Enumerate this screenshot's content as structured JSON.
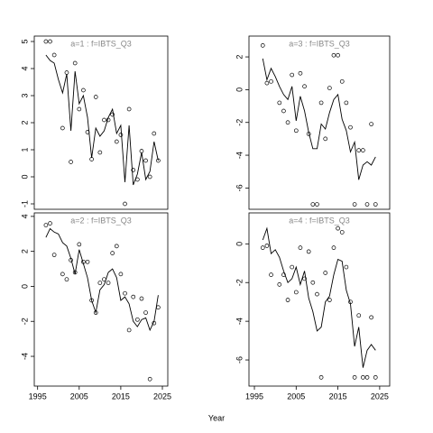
{
  "x_label": "Year",
  "chart_data": [
    {
      "type": "line",
      "title": "a=1 : f=IBTS_Q3",
      "x": [
        1997,
        1998,
        1999,
        2000,
        2001,
        2002,
        2003,
        2004,
        2005,
        2006,
        2007,
        2008,
        2009,
        2010,
        2011,
        2012,
        2013,
        2014,
        2015,
        2016,
        2017,
        2018,
        2019,
        2020,
        2021,
        2022,
        2023,
        2024
      ],
      "values": [
        4.5,
        4.3,
        4.2,
        3.6,
        3.1,
        3.8,
        1.7,
        3.9,
        2.7,
        3.0,
        2.2,
        0.7,
        1.8,
        1.5,
        1.7,
        2.2,
        2.5,
        1.6,
        1.9,
        -0.2,
        1.9,
        -0.3,
        0.1,
        0.9,
        -0.1,
        0.2,
        1.3,
        0.6
      ],
      "points_x": [
        1997,
        1998,
        1999,
        2001,
        2002,
        2003,
        2004,
        2005,
        2006,
        2007,
        2008,
        2009,
        2010,
        2011,
        2012,
        2013,
        2014,
        2015,
        2016,
        2017,
        2018,
        2019,
        2020,
        2021,
        2022,
        2023,
        2024
      ],
      "points_y": [
        5,
        5,
        4.5,
        1.8,
        3.85,
        0.55,
        4.2,
        2.5,
        3.2,
        1.65,
        0.65,
        2.95,
        0.9,
        2.1,
        2.1,
        2.3,
        1.3,
        1.55,
        -1,
        2.5,
        0.25,
        -0.1,
        0.95,
        0.6,
        0,
        1.6,
        0.6
      ],
      "xlim": [
        1994.2,
        2026.3
      ],
      "ylim": [
        -1.2,
        5.2
      ],
      "yticks": [
        -1,
        0,
        1,
        2,
        3,
        4,
        5
      ]
    },
    {
      "type": "line",
      "title": "a=3 : f=IBTS_Q3",
      "x": [
        1997,
        1998,
        1999,
        2000,
        2001,
        2002,
        2003,
        2004,
        2005,
        2006,
        2007,
        2008,
        2009,
        2010,
        2011,
        2012,
        2013,
        2014,
        2015,
        2016,
        2017,
        2018,
        2019,
        2020,
        2021,
        2022,
        2023,
        2024
      ],
      "values": [
        1.9,
        0.6,
        1.3,
        0.8,
        0.2,
        -0.3,
        -0.6,
        0.2,
        -1.9,
        -0.4,
        -1.3,
        -2.6,
        -3.6,
        -3.6,
        -2.1,
        -2.4,
        -1.4,
        -0.6,
        -0.3,
        -1.8,
        -2.5,
        -3.8,
        -3.2,
        -5.5,
        -4.6,
        -4.4,
        -4.6,
        -4.1
      ],
      "points_x": [
        1997,
        1998,
        1999,
        2001,
        2002,
        2003,
        2004,
        2005,
        2006,
        2007,
        2008,
        2009,
        2010,
        2011,
        2012,
        2013,
        2014,
        2015,
        2016,
        2017,
        2018,
        2019,
        2020,
        2021,
        2022,
        2023,
        2024
      ],
      "points_y": [
        2.7,
        0.4,
        0.5,
        -0.8,
        -1.3,
        -2,
        0.9,
        -2.5,
        1,
        0.2,
        -2.7,
        -7,
        -7,
        -0.8,
        -3,
        0.1,
        2.1,
        2.1,
        0.5,
        -0.8,
        -2.3,
        -7,
        -3.7,
        -3.7,
        -7,
        -2.1,
        -7
      ],
      "xlim": [
        1993.7,
        2027.4
      ],
      "ylim": [
        -7.3,
        3.27
      ],
      "yticks": [
        -6,
        -4,
        -2,
        0,
        2
      ]
    },
    {
      "type": "line",
      "title": "a=2 : f=IBTS_Q3",
      "x": [
        1997,
        1998,
        1999,
        2000,
        2001,
        2002,
        2003,
        2004,
        2005,
        2006,
        2007,
        2008,
        2009,
        2010,
        2011,
        2012,
        2013,
        2014,
        2015,
        2016,
        2017,
        2018,
        2019,
        2020,
        2021,
        2022,
        2023,
        2024
      ],
      "values": [
        2.8,
        3.3,
        3.1,
        3.0,
        2.5,
        2.3,
        1.6,
        0.7,
        2.1,
        1.3,
        0.5,
        -0.8,
        -1.5,
        -0.2,
        0.1,
        0.8,
        1.0,
        0.5,
        -0.8,
        -0.6,
        -1.0,
        -2.0,
        -2.3,
        -1.9,
        -1.8,
        -2.5,
        -2.0,
        -0.5
      ],
      "points_x": [
        1997,
        1998,
        1999,
        2001,
        2002,
        2003,
        2004,
        2005,
        2006,
        2007,
        2008,
        2009,
        2010,
        2011,
        2012,
        2013,
        2014,
        2015,
        2016,
        2017,
        2018,
        2019,
        2020,
        2021,
        2022,
        2023,
        2024
      ],
      "points_y": [
        3.5,
        3.6,
        1.8,
        0.7,
        0.4,
        1.5,
        0.8,
        2.4,
        1.4,
        1.4,
        -0.8,
        -1.5,
        0.2,
        0.4,
        0.2,
        1.9,
        2.3,
        0.7,
        -0.4,
        -2.5,
        -0.6,
        -1.9,
        -0.7,
        -1.5,
        -5.3,
        -2.1,
        -1.2
      ],
      "xlim": [
        1994.2,
        2026.3
      ],
      "ylim": [
        -5.7,
        4.2
      ],
      "yticks": [
        -4,
        -2,
        0,
        2,
        4
      ],
      "xticks": [
        1995,
        2005,
        2015,
        2025
      ]
    },
    {
      "type": "line",
      "title": "a=4 : f=IBTS_Q3",
      "x": [
        1997,
        1998,
        1999,
        2000,
        2001,
        2002,
        2003,
        2004,
        2005,
        2006,
        2007,
        2008,
        2009,
        2010,
        2011,
        2012,
        2013,
        2014,
        2015,
        2016,
        2017,
        2018,
        2019,
        2020,
        2021,
        2022,
        2023,
        2024
      ],
      "values": [
        0.2,
        0.8,
        -0.5,
        -0.3,
        -0.7,
        -1.4,
        -2.0,
        -1.8,
        -1.2,
        -2.1,
        -1.4,
        -2.8,
        -3.5,
        -4.5,
        -4.3,
        -3.0,
        -2.7,
        -1.6,
        -0.8,
        -0.9,
        -2.4,
        -3.1,
        -5.3,
        -4.3,
        -6.4,
        -5.5,
        -5.2,
        -5.5
      ],
      "points_x": [
        1997,
        1998,
        1999,
        2001,
        2002,
        2003,
        2004,
        2005,
        2006,
        2007,
        2008,
        2009,
        2010,
        2011,
        2012,
        2013,
        2014,
        2015,
        2016,
        2017,
        2018,
        2019,
        2020,
        2021,
        2022,
        2023,
        2024
      ],
      "points_y": [
        -0.2,
        -0.1,
        -1.6,
        -2.1,
        -1.6,
        -2.9,
        -1.2,
        -2.5,
        -0.2,
        -1.8,
        -0.4,
        -2,
        -2.6,
        -6.9,
        -1.5,
        -2.9,
        -0.2,
        0.8,
        0.6,
        -1.2,
        -3,
        -6.9,
        -3.7,
        -6.9,
        -6.9,
        -3.8,
        -6.9
      ],
      "xlim": [
        1993.7,
        2027.4
      ],
      "ylim": [
        -7.35,
        1.6
      ],
      "yticks": [
        -6,
        -4,
        -2,
        0
      ],
      "xticks": [
        1995,
        2005,
        2015,
        2025
      ]
    }
  ]
}
